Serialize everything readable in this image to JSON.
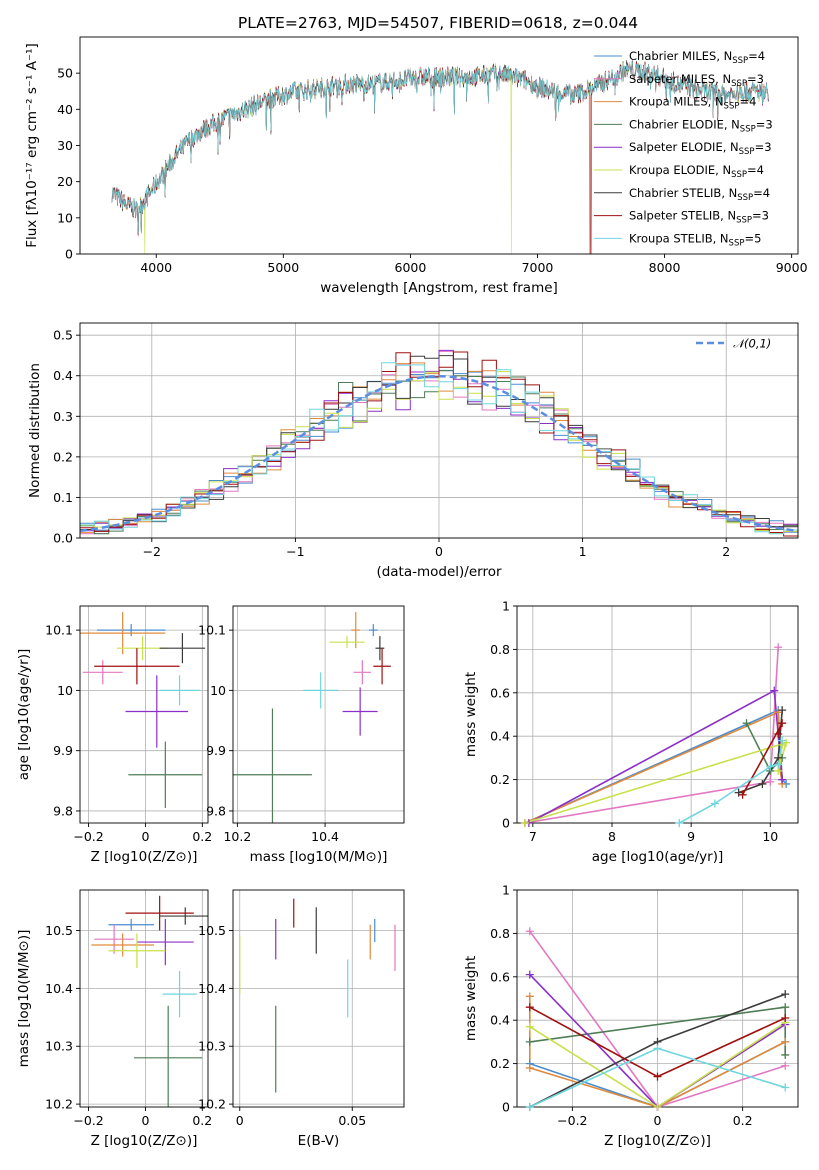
{
  "figure": {
    "title": "PLATE=2763, MJD=54507, FIBERID=0618, z=0.044"
  },
  "chart_data": [
    {
      "id": "spectrum",
      "type": "line",
      "xlabel": "wavelength [Angstrom, rest frame]",
      "ylabel": "Flux [fλ10⁻¹⁷ erg cm⁻² s⁻¹ A⁻¹]",
      "xlim": [
        3400,
        9050
      ],
      "ylim": [
        0,
        60
      ],
      "xticks": [
        4000,
        5000,
        6000,
        7000,
        8000,
        9000
      ],
      "yticks": [
        0,
        10,
        20,
        30,
        40,
        50
      ],
      "grid": false,
      "legend_position": "top-right",
      "series": [
        {
          "name": "Chabrier MILES, N_SSP=4",
          "color": "#4a8dcf"
        },
        {
          "name": "Salpeter MILES, N_SSP=3",
          "color": "#e377c2"
        },
        {
          "name": "Kroupa MILES, N_SSP=4",
          "color": "#e08a3c"
        },
        {
          "name": "Chabrier ELODIE, N_SSP=3",
          "color": "#4f7d56"
        },
        {
          "name": "Salpeter ELODIE, N_SSP=3",
          "color": "#8b2fc9"
        },
        {
          "name": "Kroupa ELODIE, N_SSP=4",
          "color": "#c8e04a"
        },
        {
          "name": "Chabrier STELIB, N_SSP=4",
          "color": "#3c3c3c"
        },
        {
          "name": "Salpeter STELIB, N_SSP=3",
          "color": "#a01010"
        },
        {
          "name": "Kroupa STELIB, N_SSP=5",
          "color": "#6fd6de"
        }
      ],
      "continuum": {
        "x": [
          3650,
          3750,
          3850,
          3950,
          4050,
          4150,
          4250,
          4350,
          4500,
          4700,
          4900,
          5100,
          5300,
          5500,
          5700,
          5900,
          6100,
          6300,
          6500,
          6700,
          6900,
          7100,
          7300,
          7500,
          7700,
          7900,
          8100,
          8300,
          8500,
          8700,
          8800
        ],
        "y": [
          17,
          14,
          12,
          17,
          22,
          27,
          31,
          34,
          37,
          40,
          43,
          45,
          46,
          47,
          47,
          48,
          49,
          49,
          49,
          50,
          48,
          45,
          44,
          47,
          51,
          50,
          47,
          45,
          44,
          45,
          45
        ]
      },
      "cutoffs": [
        {
          "series": "Kroupa ELODIE, N_SSP=4",
          "x": 3910
        },
        {
          "series": "Kroupa ELODIE, N_SSP=4",
          "x": 6795
        },
        {
          "series": "Kroupa MILES, N_SSP=4",
          "x": 7410
        },
        {
          "series": "Salpeter STELIB, N_SSP=3",
          "x": 7420
        }
      ]
    },
    {
      "id": "residuals",
      "type": "histogram",
      "xlabel": "(data-model)/error",
      "ylabel": "Normed distribution",
      "xlim": [
        -2.5,
        2.5
      ],
      "ylim": [
        0,
        0.53
      ],
      "xticks": [
        -2,
        -1,
        0,
        1,
        2
      ],
      "yticks": [
        0.0,
        0.1,
        0.2,
        0.3,
        0.4,
        0.5
      ],
      "grid": true,
      "legend_position": "top-right",
      "reference_curve": {
        "name": "𝒩(0,1)",
        "mu": 0,
        "sigma": 1,
        "color": "#5b8ee0"
      },
      "bins": {
        "start": -2.5,
        "width": 0.1,
        "count": 50
      }
    },
    {
      "id": "age-vs-Z",
      "type": "scatter",
      "xlabel": "Z [log10(Z/Z⊙)]",
      "ylabel": "age [log10(age/yr)]",
      "xlim": [
        -0.23,
        0.22
      ],
      "ylim": [
        9.78,
        10.14
      ],
      "xticks": [
        -0.2,
        0.0,
        0.2
      ],
      "yticks": [
        9.8,
        9.9,
        10.0,
        10.1
      ],
      "grid": true,
      "points": [
        {
          "x": -0.05,
          "y": 10.1,
          "xerr": 0.12,
          "yerr": 0.01,
          "color": "#4a8dcf"
        },
        {
          "x": -0.15,
          "y": 10.03,
          "xerr": 0.07,
          "yerr": 0.02,
          "color": "#e377c2"
        },
        {
          "x": -0.08,
          "y": 10.095,
          "xerr": 0.15,
          "yerr": 0.035,
          "color": "#e08a3c"
        },
        {
          "x": 0.07,
          "y": 9.86,
          "xerr": 0.13,
          "yerr": 0.055,
          "color": "#4f7d56"
        },
        {
          "x": 0.04,
          "y": 9.965,
          "xerr": 0.11,
          "yerr": 0.06,
          "color": "#8b2fc9"
        },
        {
          "x": -0.01,
          "y": 10.07,
          "xerr": 0.09,
          "yerr": 0.02,
          "color": "#c8e04a"
        },
        {
          "x": 0.13,
          "y": 10.07,
          "xerr": 0.08,
          "yerr": 0.025,
          "color": "#3c3c3c"
        },
        {
          "x": -0.03,
          "y": 10.04,
          "xerr": 0.15,
          "yerr": 0.03,
          "color": "#a01010"
        },
        {
          "x": 0.12,
          "y": 10.0,
          "xerr": 0.07,
          "yerr": 0.025,
          "color": "#6fd6de"
        }
      ]
    },
    {
      "id": "age-vs-mass",
      "type": "scatter",
      "xlabel": "mass [log10(M/M⊙)]",
      "ylabel": "",
      "xlim": [
        10.19,
        10.58
      ],
      "ylim": [
        9.78,
        10.14
      ],
      "xticks": [
        10.2,
        10.4
      ],
      "yticks": [
        9.8,
        9.9,
        10.0,
        10.1
      ],
      "grid": true,
      "points": [
        {
          "x": 10.51,
          "y": 10.1,
          "xerr": 0.01,
          "yerr": 0.01,
          "color": "#4a8dcf"
        },
        {
          "x": 10.485,
          "y": 10.03,
          "xerr": 0.02,
          "yerr": 0.02,
          "color": "#e377c2"
        },
        {
          "x": 10.47,
          "y": 10.1,
          "xerr": 0.01,
          "yerr": 0.03,
          "color": "#e08a3c"
        },
        {
          "x": 10.28,
          "y": 9.86,
          "xerr": 0.09,
          "yerr": 0.11,
          "color": "#4f7d56"
        },
        {
          "x": 10.48,
          "y": 9.965,
          "xerr": 0.04,
          "yerr": 0.04,
          "color": "#8b2fc9"
        },
        {
          "x": 10.45,
          "y": 10.08,
          "xerr": 0.04,
          "yerr": 0.01,
          "color": "#c8e04a"
        },
        {
          "x": 10.525,
          "y": 10.07,
          "xerr": 0.01,
          "yerr": 0.02,
          "color": "#3c3c3c"
        },
        {
          "x": 10.53,
          "y": 10.04,
          "xerr": 0.02,
          "yerr": 0.03,
          "color": "#a01010"
        },
        {
          "x": 10.39,
          "y": 10.0,
          "xerr": 0.04,
          "yerr": 0.03,
          "color": "#6fd6de"
        }
      ]
    },
    {
      "id": "weight-vs-age",
      "type": "line",
      "xlabel": "age [log10(age/yr)]",
      "ylabel": "mass weight",
      "xlim": [
        6.8,
        10.35
      ],
      "ylim": [
        0,
        1.0
      ],
      "xticks": [
        7,
        8,
        9,
        10
      ],
      "yticks": [
        0.0,
        0.2,
        0.4,
        0.6,
        0.8,
        1.0
      ],
      "grid": true,
      "series": [
        {
          "color": "#4a8dcf",
          "x": [
            6.9,
            10.1,
            10.15,
            10.2
          ],
          "y": [
            0.0,
            0.52,
            0.2,
            0.18
          ]
        },
        {
          "color": "#e377c2",
          "x": [
            6.9,
            10.0,
            10.1
          ],
          "y": [
            0.0,
            0.19,
            0.81
          ]
        },
        {
          "color": "#e08a3c",
          "x": [
            6.9,
            10.1,
            10.15,
            10.1
          ],
          "y": [
            0.0,
            0.51,
            0.18,
            0.3
          ]
        },
        {
          "color": "#4f7d56",
          "x": [
            9.7,
            10.0,
            10.15
          ],
          "y": [
            0.46,
            0.24,
            0.3
          ]
        },
        {
          "color": "#8b2fc9",
          "x": [
            6.95,
            10.05,
            10.15
          ],
          "y": [
            0.0,
            0.61,
            0.2
          ]
        },
        {
          "color": "#c8e04a",
          "x": [
            6.9,
            10.2,
            10.1,
            10.15
          ],
          "y": [
            0.0,
            0.37,
            0.24,
            0.36
          ]
        },
        {
          "color": "#3c3c3c",
          "x": [
            9.6,
            9.9,
            10.1,
            10.15
          ],
          "y": [
            0.14,
            0.18,
            0.3,
            0.52
          ]
        },
        {
          "color": "#a01010",
          "x": [
            9.65,
            10.15,
            10.1
          ],
          "y": [
            0.13,
            0.46,
            0.41
          ]
        },
        {
          "color": "#6fd6de",
          "x": [
            8.85,
            9.3,
            10.0,
            10.1,
            10.15
          ],
          "y": [
            0.0,
            0.09,
            0.26,
            0.27,
            0.38
          ]
        }
      ]
    },
    {
      "id": "mass-vs-Z",
      "type": "scatter",
      "xlabel": "Z [log10(Z/Z⊙)]",
      "ylabel": "mass [log10(M/M⊙)]",
      "xlim": [
        -0.23,
        0.22
      ],
      "ylim": [
        10.195,
        10.57
      ],
      "xticks": [
        -0.2,
        0.0,
        0.2
      ],
      "yticks": [
        10.2,
        10.3,
        10.4,
        10.5
      ],
      "grid": true,
      "points": [
        {
          "x": -0.05,
          "y": 10.51,
          "xerr": 0.08,
          "yerr": 0.01,
          "color": "#4a8dcf"
        },
        {
          "x": -0.11,
          "y": 10.485,
          "xerr": 0.07,
          "yerr": 0.025,
          "color": "#e377c2"
        },
        {
          "x": -0.08,
          "y": 10.475,
          "xerr": 0.11,
          "yerr": 0.02,
          "color": "#e08a3c"
        },
        {
          "x": 0.08,
          "y": 10.28,
          "xerr": 0.12,
          "yerr": 0.09,
          "color": "#4f7d56"
        },
        {
          "x": 0.07,
          "y": 10.48,
          "xerr": 0.1,
          "yerr": 0.04,
          "color": "#8b2fc9"
        },
        {
          "x": -0.03,
          "y": 10.465,
          "xerr": 0.1,
          "yerr": 0.03,
          "color": "#c8e04a"
        },
        {
          "x": 0.14,
          "y": 10.525,
          "xerr": 0.09,
          "yerr": 0.015,
          "color": "#3c3c3c"
        },
        {
          "x": 0.05,
          "y": 10.53,
          "xerr": 0.12,
          "yerr": 0.03,
          "color": "#a01010"
        },
        {
          "x": 0.12,
          "y": 10.39,
          "xerr": 0.06,
          "yerr": 0.04,
          "color": "#6fd6de"
        }
      ]
    },
    {
      "id": "mass-vs-EBV",
      "type": "scatter",
      "xlabel": "E(B-V)",
      "ylabel": "",
      "xlim": [
        -0.003,
        0.073
      ],
      "ylim": [
        10.195,
        10.57
      ],
      "xticks": [
        0.0,
        0.05
      ],
      "yticks": [
        10.2,
        10.3,
        10.4,
        10.5
      ],
      "grid": true,
      "points": [
        {
          "x": 0.06,
          "y": 10.5,
          "xerr": 0,
          "yerr": 0.02,
          "color": "#4a8dcf"
        },
        {
          "x": 0.069,
          "y": 10.47,
          "xerr": 0,
          "yerr": 0.04,
          "color": "#e377c2"
        },
        {
          "x": 0.058,
          "y": 10.48,
          "xerr": 0,
          "yerr": 0.03,
          "color": "#e08a3c"
        },
        {
          "x": 0.016,
          "y": 10.295,
          "xerr": 0,
          "yerr": 0.075,
          "color": "#4f7d56"
        },
        {
          "x": 0.016,
          "y": 10.485,
          "xerr": 0,
          "yerr": 0.035,
          "color": "#8b2fc9"
        },
        {
          "x": 0.0,
          "y": 10.44,
          "xerr": 0,
          "yerr": 0.05,
          "color": "#c8e04a"
        },
        {
          "x": 0.034,
          "y": 10.5,
          "xerr": 0,
          "yerr": 0.04,
          "color": "#3c3c3c"
        },
        {
          "x": 0.024,
          "y": 10.53,
          "xerr": 0,
          "yerr": 0.025,
          "color": "#a01010"
        },
        {
          "x": 0.048,
          "y": 10.4,
          "xerr": 0,
          "yerr": 0.05,
          "color": "#6fd6de"
        }
      ]
    },
    {
      "id": "weight-vs-Z",
      "type": "line",
      "xlabel": "Z [log10(Z/Z⊙)]",
      "ylabel": "mass weight",
      "xlim": [
        -0.33,
        0.33
      ],
      "ylim": [
        0,
        1.0
      ],
      "xticks": [
        -0.2,
        0.0,
        0.2
      ],
      "yticks": [
        0.0,
        0.2,
        0.4,
        0.6,
        0.8,
        1.0
      ],
      "grid": true,
      "series": [
        {
          "color": "#4a8dcf",
          "x": [
            -0.3,
            0.0,
            0.3
          ],
          "y": [
            0.2,
            0.0,
            0.3
          ]
        },
        {
          "color": "#e377c2",
          "x": [
            -0.3,
            0.0,
            0.3
          ],
          "y": [
            0.81,
            0.0,
            0.19
          ]
        },
        {
          "color": "#e08a3c",
          "x": [
            -0.3,
            -0.3,
            0.0,
            0.3
          ],
          "y": [
            0.51,
            0.18,
            0.0,
            0.3
          ]
        },
        {
          "color": "#4f7d56",
          "x": [
            -0.3,
            0.3,
            0.3
          ],
          "y": [
            0.3,
            0.46,
            0.24
          ]
        },
        {
          "color": "#8b2fc9",
          "x": [
            -0.3,
            0.0,
            0.3
          ],
          "y": [
            0.61,
            0.0,
            0.38
          ]
        },
        {
          "color": "#c8e04a",
          "x": [
            -0.3,
            0.0,
            0.3
          ],
          "y": [
            0.37,
            0.0,
            0.39
          ]
        },
        {
          "color": "#3c3c3c",
          "x": [
            -0.3,
            0.0,
            0.3
          ],
          "y": [
            0.0,
            0.3,
            0.52
          ]
        },
        {
          "color": "#a01010",
          "x": [
            -0.3,
            0.0,
            0.3
          ],
          "y": [
            0.46,
            0.14,
            0.41
          ]
        },
        {
          "color": "#6fd6de",
          "x": [
            -0.3,
            0.0,
            0.3
          ],
          "y": [
            0.0,
            0.27,
            0.09
          ]
        }
      ]
    }
  ]
}
